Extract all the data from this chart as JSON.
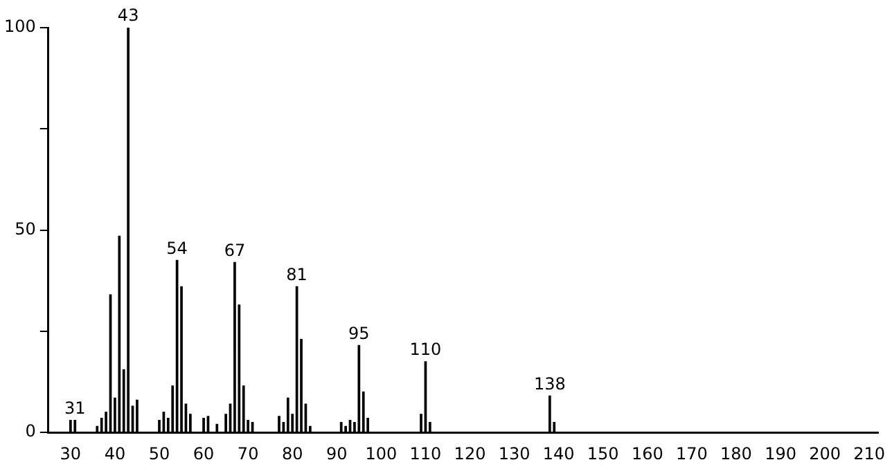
{
  "chart_data": {
    "type": "bar",
    "color": "#000000",
    "x": [
      30,
      31,
      36,
      37,
      38,
      39,
      40,
      41,
      42,
      43,
      44,
      45,
      50,
      51,
      52,
      53,
      54,
      55,
      56,
      57,
      60,
      61,
      63,
      65,
      66,
      67,
      68,
      69,
      70,
      71,
      77,
      78,
      79,
      80,
      81,
      82,
      83,
      84,
      91,
      92,
      93,
      94,
      95,
      96,
      97,
      109,
      110,
      111,
      138,
      139
    ],
    "values": [
      3,
      3,
      1.5,
      3.5,
      5,
      34,
      8.5,
      48.5,
      15.5,
      100,
      6.5,
      8,
      3,
      5,
      3.5,
      11.5,
      42.5,
      36,
      7,
      4.5,
      3.5,
      4,
      2,
      4.5,
      7,
      42,
      31.5,
      11.5,
      3,
      2.5,
      4,
      2.5,
      8.5,
      4.5,
      36,
      23,
      7,
      1.5,
      2.5,
      1.5,
      3,
      2.5,
      21.5,
      10,
      3.5,
      4.5,
      17.5,
      2.5,
      9,
      2.5
    ],
    "annotations": [
      {
        "text": "31",
        "x": 31,
        "y": 3
      },
      {
        "text": "43",
        "x": 43,
        "y": 100
      },
      {
        "text": "54",
        "x": 54,
        "y": 42.5
      },
      {
        "text": "67",
        "x": 67,
        "y": 42
      },
      {
        "text": "81",
        "x": 81,
        "y": 36
      },
      {
        "text": "95",
        "x": 95,
        "y": 21.5
      },
      {
        "text": "110",
        "x": 110,
        "y": 17.5
      },
      {
        "text": "138",
        "x": 138,
        "y": 9
      }
    ],
    "xlim": [
      25,
      212
    ],
    "xticks": [
      30,
      40,
      50,
      60,
      70,
      80,
      90,
      100,
      110,
      120,
      130,
      140,
      150,
      160,
      170,
      180,
      190,
      200,
      210
    ],
    "ylim": [
      0,
      100
    ],
    "yticks": [
      0,
      {
        "value": 25,
        "label": null
      },
      50,
      {
        "value": 75,
        "label": null
      },
      100
    ],
    "grid": false,
    "legend": false
  }
}
